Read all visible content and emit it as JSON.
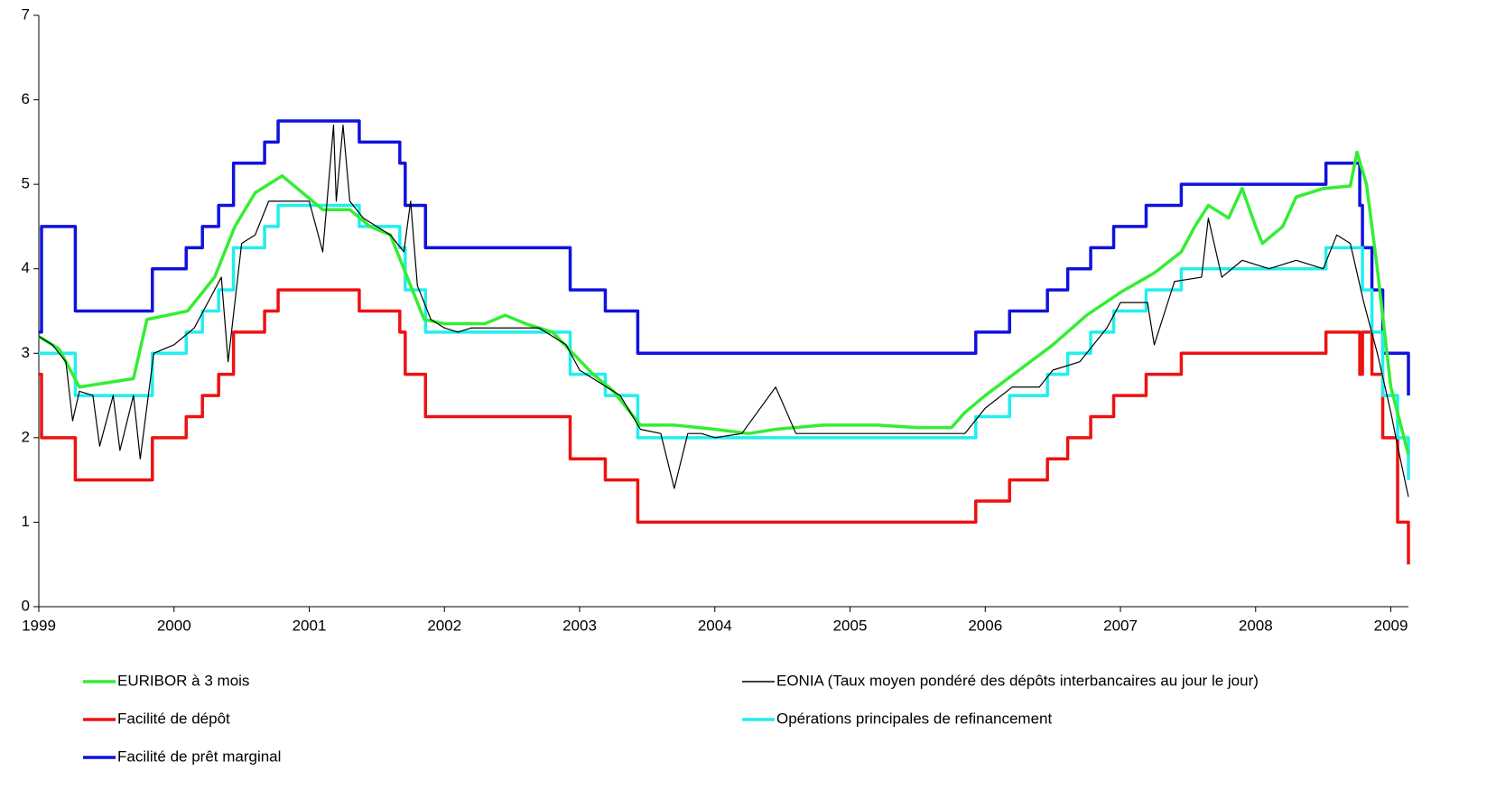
{
  "chart_data": {
    "type": "line",
    "xlim": [
      1999,
      2009.13
    ],
    "xticks": [
      1999,
      2000,
      2001,
      2002,
      2003,
      2004,
      2005,
      2006,
      2007,
      2008,
      2009
    ],
    "ylim": [
      0,
      7
    ],
    "yticks": [
      0,
      1,
      2,
      3,
      4,
      5,
      6,
      7
    ],
    "grid": false,
    "legend": "bottom",
    "series": [
      {
        "name": "EURIBOR à 3 mois",
        "color": "#33ee33",
        "width": 3.5,
        "step": false,
        "x": [
          1999.0,
          1999.15,
          1999.3,
          1999.5,
          1999.7,
          1999.8,
          1999.95,
          2000.1,
          2000.3,
          2000.45,
          2000.6,
          2000.8,
          2000.95,
          2001.1,
          2001.3,
          2001.45,
          2001.6,
          2001.75,
          2001.85,
          2002.0,
          2002.3,
          2002.45,
          2002.6,
          2002.8,
          2002.95,
          2003.1,
          2003.25,
          2003.45,
          2003.7,
          2004.0,
          2004.25,
          2004.45,
          2004.8,
          2005.2,
          2005.5,
          2005.75,
          2005.85,
          2006.0,
          2006.25,
          2006.5,
          2006.75,
          2007.0,
          2007.25,
          2007.45,
          2007.55,
          2007.65,
          2007.8,
          2007.9,
          2008.0,
          2008.05,
          2008.2,
          2008.3,
          2008.5,
          2008.7,
          2008.75,
          2008.82,
          2008.9,
          2009.0,
          2009.13
        ],
        "values": [
          3.2,
          3.05,
          2.6,
          2.65,
          2.7,
          3.4,
          3.45,
          3.5,
          3.9,
          4.5,
          4.9,
          5.1,
          4.9,
          4.7,
          4.7,
          4.5,
          4.4,
          3.8,
          3.4,
          3.35,
          3.35,
          3.45,
          3.35,
          3.25,
          3.0,
          2.75,
          2.55,
          2.15,
          2.15,
          2.1,
          2.05,
          2.1,
          2.15,
          2.15,
          2.12,
          2.12,
          2.3,
          2.5,
          2.8,
          3.1,
          3.45,
          3.72,
          3.95,
          4.2,
          4.5,
          4.75,
          4.6,
          4.95,
          4.5,
          4.3,
          4.5,
          4.85,
          4.95,
          4.98,
          5.38,
          5.0,
          4.0,
          2.6,
          1.8
        ]
      },
      {
        "name": "EONIA (Taux moyen pondéré des dépôts interbancaires au jour le jour)",
        "color": "#000000",
        "width": 1.2,
        "step": false,
        "x": [
          1999.0,
          1999.1,
          1999.2,
          1999.25,
          1999.3,
          1999.4,
          1999.45,
          1999.55,
          1999.6,
          1999.7,
          1999.75,
          1999.85,
          2000.0,
          2000.15,
          2000.25,
          2000.35,
          2000.4,
          2000.5,
          2000.6,
          2000.7,
          2000.8,
          2000.9,
          2001.0,
          2001.1,
          2001.18,
          2001.2,
          2001.25,
          2001.3,
          2001.4,
          2001.5,
          2001.6,
          2001.7,
          2001.75,
          2001.8,
          2001.9,
          2002.0,
          2002.1,
          2002.2,
          2002.3,
          2002.5,
          2002.7,
          2002.9,
          2003.0,
          2003.1,
          2003.3,
          2003.45,
          2003.6,
          2003.7,
          2003.8,
          2003.9,
          2004.0,
          2004.2,
          2004.45,
          2004.6,
          2004.8,
          2005.0,
          2005.3,
          2005.6,
          2005.85,
          2006.0,
          2006.2,
          2006.4,
          2006.5,
          2006.7,
          2006.9,
          2007.0,
          2007.2,
          2007.25,
          2007.4,
          2007.6,
          2007.65,
          2007.75,
          2007.9,
          2008.1,
          2008.3,
          2008.5,
          2008.6,
          2008.7,
          2008.8,
          2008.9,
          2009.0,
          2009.05,
          2009.13
        ],
        "values": [
          3.2,
          3.1,
          2.9,
          2.2,
          2.55,
          2.5,
          1.9,
          2.5,
          1.85,
          2.5,
          1.75,
          3.0,
          3.1,
          3.3,
          3.6,
          3.9,
          2.9,
          4.3,
          4.4,
          4.8,
          4.8,
          4.8,
          4.8,
          4.2,
          5.7,
          4.8,
          5.7,
          4.8,
          4.6,
          4.5,
          4.4,
          4.2,
          4.8,
          3.8,
          3.4,
          3.3,
          3.25,
          3.3,
          3.3,
          3.3,
          3.3,
          3.1,
          2.8,
          2.7,
          2.5,
          2.1,
          2.05,
          1.4,
          2.05,
          2.05,
          2.0,
          2.05,
          2.6,
          2.05,
          2.05,
          2.05,
          2.05,
          2.05,
          2.05,
          2.35,
          2.6,
          2.6,
          2.8,
          2.9,
          3.3,
          3.6,
          3.6,
          3.1,
          3.85,
          3.9,
          4.6,
          3.9,
          4.1,
          4.0,
          4.1,
          4.0,
          4.4,
          4.3,
          3.6,
          3.0,
          2.3,
          1.9,
          1.3
        ]
      },
      {
        "name": "Facilité de dépôt",
        "color": "#ee1111",
        "width": 3.5,
        "step": true,
        "x": [
          1999.0,
          1999.02,
          1999.27,
          1999.84,
          2000.09,
          2000.21,
          2000.33,
          2000.44,
          2000.67,
          2000.77,
          2001.37,
          2001.67,
          2001.71,
          2001.86,
          2002.93,
          2003.19,
          2003.43,
          2005.93,
          2006.18,
          2006.46,
          2006.61,
          2006.78,
          2006.95,
          2007.19,
          2007.45,
          2008.52,
          2008.77,
          2008.79,
          2008.86,
          2008.94,
          2009.05,
          2009.13
        ],
        "values": [
          2.75,
          2.0,
          1.5,
          2.0,
          2.25,
          2.5,
          2.75,
          3.25,
          3.5,
          3.75,
          3.5,
          3.25,
          2.75,
          2.25,
          1.75,
          1.5,
          1.0,
          1.25,
          1.5,
          1.75,
          2.0,
          2.25,
          2.5,
          2.75,
          3.0,
          3.25,
          2.75,
          3.25,
          2.75,
          2.0,
          1.0,
          0.5
        ]
      },
      {
        "name": "Opérations principales de refinancement",
        "color": "#22eeee",
        "width": 3.5,
        "step": true,
        "x": [
          1999.0,
          1999.27,
          1999.84,
          2000.09,
          2000.21,
          2000.33,
          2000.44,
          2000.67,
          2000.77,
          2001.37,
          2001.67,
          2001.71,
          2001.86,
          2002.93,
          2003.19,
          2003.43,
          2005.93,
          2006.18,
          2006.46,
          2006.61,
          2006.78,
          2006.95,
          2007.19,
          2007.45,
          2008.52,
          2008.79,
          2008.86,
          2008.94,
          2009.05,
          2009.13
        ],
        "values": [
          3.0,
          2.5,
          3.0,
          3.25,
          3.5,
          3.75,
          4.25,
          4.5,
          4.75,
          4.5,
          4.25,
          3.75,
          3.25,
          2.75,
          2.5,
          2.0,
          2.25,
          2.5,
          2.75,
          3.0,
          3.25,
          3.5,
          3.75,
          4.0,
          4.25,
          3.75,
          3.25,
          2.5,
          2.0,
          1.5
        ]
      },
      {
        "name": "Facilité de prêt marginal",
        "color": "#1111dd",
        "width": 3.5,
        "step": true,
        "x": [
          1999.0,
          1999.02,
          1999.27,
          1999.84,
          2000.09,
          2000.21,
          2000.33,
          2000.44,
          2000.67,
          2000.77,
          2001.37,
          2001.67,
          2001.71,
          2001.86,
          2002.93,
          2003.19,
          2003.43,
          2005.93,
          2006.18,
          2006.46,
          2006.61,
          2006.78,
          2006.95,
          2007.19,
          2007.45,
          2008.52,
          2008.77,
          2008.79,
          2008.86,
          2008.94,
          2009.13
        ],
        "values": [
          3.25,
          4.5,
          3.5,
          4.0,
          4.25,
          4.5,
          4.75,
          5.25,
          5.5,
          5.75,
          5.5,
          5.25,
          4.75,
          4.25,
          3.75,
          3.5,
          3.0,
          3.25,
          3.5,
          3.75,
          4.0,
          4.25,
          4.5,
          4.75,
          5.0,
          5.25,
          4.75,
          4.25,
          3.75,
          3.0,
          2.5
        ]
      }
    ]
  }
}
